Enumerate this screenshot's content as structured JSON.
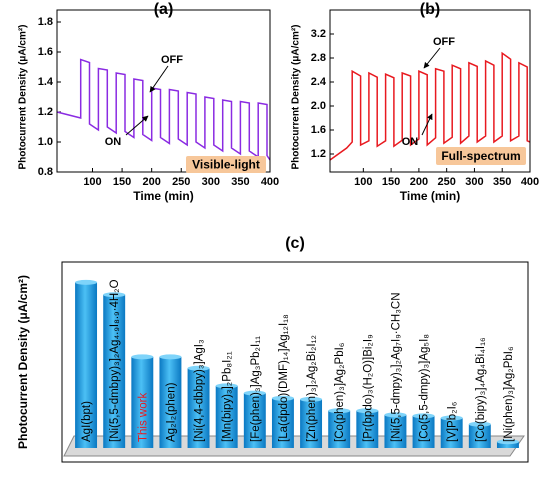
{
  "chart_data": [
    {
      "type": "line",
      "title": "(a)",
      "xlabel": "Time (min)",
      "ylabel": "Photocurrent Density (μA/cm²)",
      "color": "#8a2be2",
      "x": [
        40,
        80,
        80,
        95,
        95,
        110,
        110,
        125,
        125,
        140,
        140,
        155,
        155,
        170,
        170,
        185,
        185,
        200,
        200,
        215,
        215,
        230,
        230,
        245,
        245,
        260,
        260,
        275,
        275,
        290,
        290,
        305,
        305,
        320,
        320,
        335,
        335,
        350,
        350,
        365,
        365,
        380,
        380,
        395,
        395,
        400
      ],
      "values": [
        1.2,
        1.16,
        1.55,
        1.53,
        1.12,
        1.08,
        1.49,
        1.48,
        1.1,
        1.06,
        1.46,
        1.45,
        1.07,
        1.03,
        1.42,
        1.41,
        1.05,
        1.01,
        1.36,
        1.35,
        1.03,
        0.99,
        1.35,
        1.34,
        1.02,
        0.98,
        1.33,
        1.32,
        1.0,
        0.96,
        1.3,
        1.29,
        0.98,
        0.94,
        1.28,
        1.27,
        0.96,
        0.92,
        1.27,
        1.26,
        0.94,
        0.9,
        1.26,
        1.25,
        0.91,
        0.88
      ],
      "xlim": [
        40,
        400
      ],
      "xticks": [
        100,
        150,
        200,
        250,
        300,
        350,
        400
      ],
      "ylim": [
        0.8,
        1.8
      ],
      "yticks": [
        0.8,
        {
          "value": 1,
          "label": "1.0"
        },
        1.2,
        1.4,
        1.6,
        1.8
      ],
      "annotations": [
        "OFF",
        "ON",
        "Visible-light"
      ]
    },
    {
      "type": "line",
      "title": "(b)",
      "xlabel": "Time (min)",
      "ylabel": "Photocurrent Density (μA/cm²)",
      "color": "#e8191f",
      "x": [
        40,
        70,
        80,
        80,
        95,
        95,
        110,
        110,
        125,
        125,
        140,
        140,
        155,
        155,
        170,
        170,
        185,
        185,
        200,
        200,
        215,
        215,
        230,
        230,
        245,
        245,
        260,
        260,
        275,
        275,
        290,
        290,
        305,
        305,
        320,
        320,
        335,
        335,
        350,
        350,
        365,
        365,
        380,
        380,
        395,
        395,
        400
      ],
      "values": [
        1.1,
        1.3,
        1.4,
        2.58,
        2.5,
        1.35,
        1.42,
        2.55,
        2.48,
        1.33,
        1.42,
        2.53,
        2.47,
        1.33,
        1.43,
        2.55,
        2.5,
        1.35,
        1.45,
        2.58,
        2.52,
        1.35,
        1.47,
        2.62,
        2.58,
        1.38,
        1.48,
        2.68,
        2.62,
        1.38,
        1.5,
        2.72,
        2.66,
        1.4,
        1.5,
        2.75,
        2.68,
        1.4,
        1.5,
        2.88,
        2.78,
        1.42,
        1.5,
        2.72,
        2.65,
        1.42,
        1.4
      ],
      "xlim": [
        40,
        400
      ],
      "xticks": [
        100,
        150,
        200,
        250,
        300,
        350,
        400
      ],
      "ylim": [
        0.9,
        3.4
      ],
      "yticks": [
        1.2,
        1.6,
        {
          "value": 2,
          "label": "2.0"
        },
        2.4,
        2.8,
        3.2
      ],
      "annotations": [
        "OFF",
        "ON",
        "Full-spectrum"
      ]
    },
    {
      "type": "bar",
      "title": "(c)",
      "ylabel": "Photocurrent Density (μA/cm²)",
      "color": "#1e9fe6",
      "categories": [
        "AgI(bpt)",
        "[Ni(5,5-dmbpy)₃]₂Ag₄.₉I₈.₉·4H₂O",
        "This work",
        "Ag₂I₂(phen)",
        "[Ni(4,4-dbbpy)₃]AgI₃",
        "[Mn(bipy)₃]₂Pb₈I₂₁",
        "[Fe(phen)₃]Ag₃Pb₂I₁₁",
        "[La(dpdo)(DMF)₁₄]Ag₁₂I₁₈",
        "[Zn(phen)₃]₂Ag₂Bi₂I₁₂",
        "[Co(phen)₃]Ag₂PbI₆",
        "[Pr(bpdo)₃(H₂O)]Bi₂I₉",
        "[Ni(5,5-dmpy)₃]₂Ag₇I₉·CH₃CN",
        "[Co(5,5-dmpy)₃]Ag₅I₈",
        "[V]Pb₂I₆",
        "[Co(bipy)₃]₄Ag₄Bi₄I₁₆",
        "[Ni(phen)₃]Ag₂PbI₆"
      ],
      "label_colors": [
        "#000",
        "#000",
        "#e8191f",
        "#000",
        "#000",
        "#000",
        "#000",
        "#000",
        "#000",
        "#000",
        "#000",
        "#000",
        "#000",
        "#000",
        "#000",
        "#000"
      ],
      "values": [
        160,
        148,
        88,
        88,
        77,
        60,
        53,
        48,
        47,
        36,
        36,
        32,
        31,
        29,
        23,
        6
      ],
      "ylim": [
        0,
        170
      ]
    }
  ]
}
